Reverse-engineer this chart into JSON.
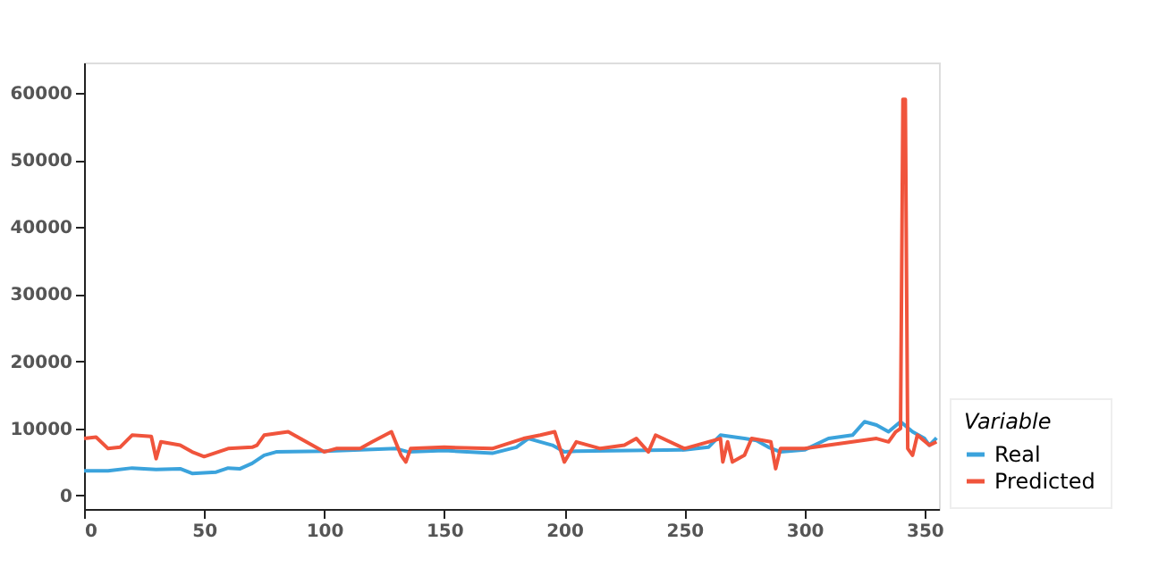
{
  "chart_data": {
    "type": "line",
    "legend_title": "Variable",
    "legend": "bottom right",
    "grid": false,
    "xlim": [
      0,
      356
    ],
    "xticks": [
      0,
      50,
      100,
      150,
      200,
      250,
      300,
      350
    ],
    "ylim": [
      -2000,
      64500
    ],
    "yticks": [
      0,
      10000,
      20000,
      30000,
      40000,
      50000,
      60000
    ],
    "series": [
      {
        "name": "Real",
        "color": "#3ba3dc",
        "x": [
          0,
          10,
          20,
          30,
          40,
          45,
          55,
          60,
          65,
          70,
          75,
          80,
          100,
          130,
          135,
          150,
          170,
          180,
          185,
          195,
          200,
          205,
          250,
          260,
          265,
          275,
          280,
          285,
          290,
          300,
          310,
          320,
          325,
          330,
          335,
          340,
          345,
          350,
          352,
          355
        ],
        "values": [
          3700,
          3700,
          4100,
          3900,
          4000,
          3300,
          3500,
          4100,
          4000,
          4800,
          6000,
          6500,
          6600,
          7000,
          6500,
          6700,
          6300,
          7200,
          8500,
          7500,
          6500,
          6600,
          6800,
          7200,
          9000,
          8500,
          8200,
          7200,
          6500,
          6800,
          8500,
          9000,
          11000,
          10500,
          9500,
          11000,
          9500,
          8500,
          7500,
          8600
        ]
      },
      {
        "name": "Predicted",
        "color": "#f0543c",
        "x": [
          0,
          5,
          10,
          15,
          20,
          28,
          30,
          32,
          40,
          45,
          50,
          60,
          70,
          72,
          75,
          85,
          90,
          100,
          105,
          115,
          120,
          128,
          132,
          134,
          136,
          150,
          170,
          183,
          190,
          196,
          200,
          205,
          215,
          225,
          230,
          235,
          238,
          250,
          260,
          265,
          266,
          268,
          270,
          275,
          278,
          286,
          288,
          290,
          300,
          310,
          320,
          330,
          335,
          338,
          340,
          341,
          342,
          343,
          345,
          347,
          352,
          355
        ],
        "values": [
          8500,
          8700,
          7000,
          7200,
          9000,
          8800,
          5500,
          8000,
          7500,
          6500,
          5800,
          7000,
          7200,
          7500,
          9000,
          9500,
          8500,
          6500,
          7000,
          7000,
          8000,
          9500,
          6000,
          5000,
          7000,
          7200,
          7000,
          8500,
          9000,
          9500,
          5000,
          8000,
          7000,
          7500,
          8500,
          6500,
          9000,
          7000,
          8000,
          8500,
          5000,
          8000,
          5000,
          6000,
          8500,
          8000,
          4000,
          7000,
          7000,
          7500,
          8000,
          8500,
          8000,
          9500,
          10000,
          59000,
          59000,
          7000,
          6000,
          9000,
          7500,
          8000
        ]
      }
    ]
  }
}
